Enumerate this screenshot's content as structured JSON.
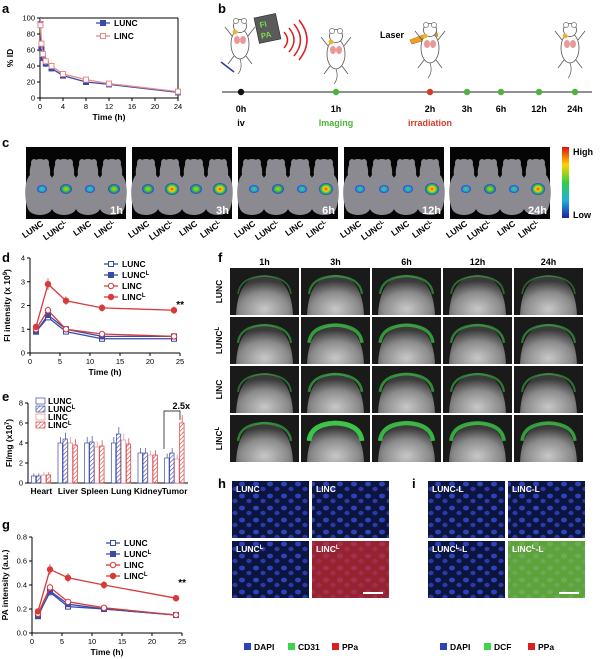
{
  "panels": {
    "a": "a",
    "b": "b",
    "c": "c",
    "d": "d",
    "e": "e",
    "f": "f",
    "g": "g",
    "h": "h",
    "i": "i"
  },
  "series_names": {
    "lunc": "LUNC",
    "lunc_l": "LUNC",
    "linc": "LINC",
    "linc_l": "LINC",
    "sup": "L"
  },
  "colors": {
    "blue": "#3a4aa8",
    "red": "#d83a3a",
    "light_red": "#e88a8a"
  },
  "b_timeline": {
    "fi_pa_label": "FI\nPA",
    "laser_label": "Laser",
    "times": [
      "0h",
      "1h",
      "2h",
      "3h",
      "6h",
      "12h",
      "24h"
    ],
    "iv": "iv",
    "imaging": "Imaging",
    "irradiation": "irradiation"
  },
  "c_imaging": {
    "times": [
      "1h",
      "3h",
      "6h",
      "12h",
      "24h"
    ],
    "mouse_labels": [
      "LUNC",
      "LUNC",
      "LINC",
      "LINC"
    ],
    "mouse_sup": [
      "",
      "L",
      "",
      "L"
    ],
    "colorbar_high": "High",
    "colorbar_low": "Low"
  },
  "f_ultrasound": {
    "times": [
      "1h",
      "3h",
      "6h",
      "12h",
      "24h"
    ],
    "rows": [
      "LUNC",
      "LUNC",
      "LINC",
      "LINC"
    ],
    "row_sup": [
      "",
      "L",
      "",
      "L"
    ]
  },
  "e_sig": "2.5x",
  "sig_d": "**",
  "sig_g": "**",
  "h_micro": {
    "labels": [
      "LUNC",
      "LINC",
      "LUNC",
      "LINC"
    ],
    "sup": [
      "",
      "",
      "L",
      "L"
    ],
    "legend": [
      "DAPI",
      "CD31",
      "PPa"
    ]
  },
  "i_micro": {
    "labels": [
      "LUNC-L",
      "LINC-L",
      "LUNC",
      "LINC"
    ],
    "sup": [
      "",
      "",
      "L",
      "L"
    ],
    "suffix": [
      "",
      "",
      "-L",
      "-L"
    ],
    "legend": [
      "DAPI",
      "DCF",
      "PPa"
    ]
  },
  "chart_data": [
    {
      "id": "a",
      "type": "line",
      "xlabel": "Time (h)",
      "ylabel": "% ID",
      "xlim": [
        0,
        24
      ],
      "ylim": [
        0,
        100
      ],
      "xticks": [
        0,
        4,
        8,
        12,
        16,
        20,
        24
      ],
      "yticks": [
        0,
        20,
        40,
        60,
        80,
        100
      ],
      "series": [
        {
          "name": "LUNC",
          "x": [
            0.083,
            0.25,
            0.5,
            1,
            2,
            4,
            8,
            12,
            24
          ],
          "y": [
            92,
            62,
            50,
            43,
            37,
            28,
            20,
            17,
            7
          ]
        },
        {
          "name": "LINC",
          "x": [
            0.083,
            0.25,
            0.5,
            1,
            2,
            4,
            8,
            12,
            24
          ],
          "y": [
            91,
            68,
            55,
            46,
            40,
            30,
            23,
            18,
            8
          ]
        }
      ]
    },
    {
      "id": "d",
      "type": "line",
      "xlabel": "Time (h)",
      "ylabel": "FI intensity (x 10",
      "ylabel_sup": "9",
      "ylabel_end": ")",
      "xlim": [
        0,
        25
      ],
      "ylim": [
        0,
        4
      ],
      "xticks": [
        0,
        5,
        10,
        15,
        20,
        25
      ],
      "yticks": [
        0,
        1,
        2,
        3,
        4
      ],
      "series": [
        {
          "name": "LUNC",
          "x": [
            1,
            3,
            6,
            12,
            24
          ],
          "y": [
            0.9,
            1.5,
            0.9,
            0.6,
            0.6
          ]
        },
        {
          "name": "LUNC^L",
          "x": [
            1,
            3,
            6,
            12,
            24
          ],
          "y": [
            0.9,
            1.6,
            1.0,
            0.7,
            0.7
          ]
        },
        {
          "name": "LINC",
          "x": [
            1,
            3,
            6,
            12,
            24
          ],
          "y": [
            1.0,
            1.8,
            1.0,
            0.8,
            0.7
          ]
        },
        {
          "name": "LINC^L",
          "x": [
            1,
            3,
            6,
            12,
            24
          ],
          "y": [
            1.1,
            2.9,
            2.2,
            1.9,
            1.8
          ]
        }
      ]
    },
    {
      "id": "e",
      "type": "bar",
      "ylabel": "FI/mg (x10",
      "ylabel_sup": "7",
      "ylabel_end": ")",
      "categories": [
        "Heart",
        "Liver",
        "Spleen",
        "Lung",
        "Kidney",
        "Tumor"
      ],
      "ylim": [
        0,
        8
      ],
      "yticks": [
        0,
        2,
        4,
        6,
        8
      ],
      "series": [
        {
          "name": "LUNC",
          "values": [
            0.7,
            4.0,
            4.0,
            4.0,
            3.0,
            2.5
          ]
        },
        {
          "name": "LUNC^L",
          "values": [
            0.7,
            4.4,
            4.1,
            4.9,
            3.0,
            3.0
          ]
        },
        {
          "name": "LINC",
          "values": [
            0.8,
            4.0,
            3.6,
            4.3,
            2.8,
            2.4
          ]
        },
        {
          "name": "LINC^L",
          "values": [
            0.8,
            3.8,
            3.7,
            3.9,
            2.8,
            6.0
          ]
        }
      ]
    },
    {
      "id": "g",
      "type": "line",
      "xlabel": "Time (h)",
      "ylabel": "PA intensity (a.u.)",
      "xlim": [
        0,
        25
      ],
      "ylim": [
        0,
        0.8
      ],
      "xticks": [
        0,
        5,
        10,
        15,
        20,
        25
      ],
      "yticks": [
        0.0,
        0.2,
        0.4,
        0.6,
        0.8
      ],
      "series": [
        {
          "name": "LUNC",
          "x": [
            1,
            3,
            6,
            12,
            24
          ],
          "y": [
            0.15,
            0.34,
            0.22,
            0.2,
            0.15
          ]
        },
        {
          "name": "LUNC^L",
          "x": [
            1,
            3,
            6,
            12,
            24
          ],
          "y": [
            0.14,
            0.35,
            0.24,
            0.2,
            0.15
          ]
        },
        {
          "name": "LINC",
          "x": [
            1,
            3,
            6,
            12,
            24
          ],
          "y": [
            0.16,
            0.38,
            0.26,
            0.21,
            0.15
          ]
        },
        {
          "name": "LINC^L",
          "x": [
            1,
            3,
            6,
            12,
            24
          ],
          "y": [
            0.18,
            0.53,
            0.46,
            0.4,
            0.29
          ]
        }
      ]
    }
  ]
}
